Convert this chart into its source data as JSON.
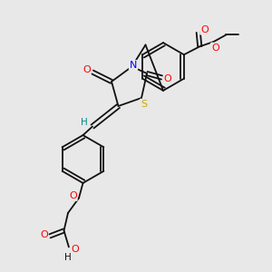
{
  "background_color": "#e8e8e8",
  "atom_colors": {
    "O": "#ff0000",
    "N": "#0000ff",
    "S": "#ccaa00",
    "C": "#111111",
    "H": "#008888"
  },
  "bond_color": "#111111",
  "bond_lw": 1.3
}
